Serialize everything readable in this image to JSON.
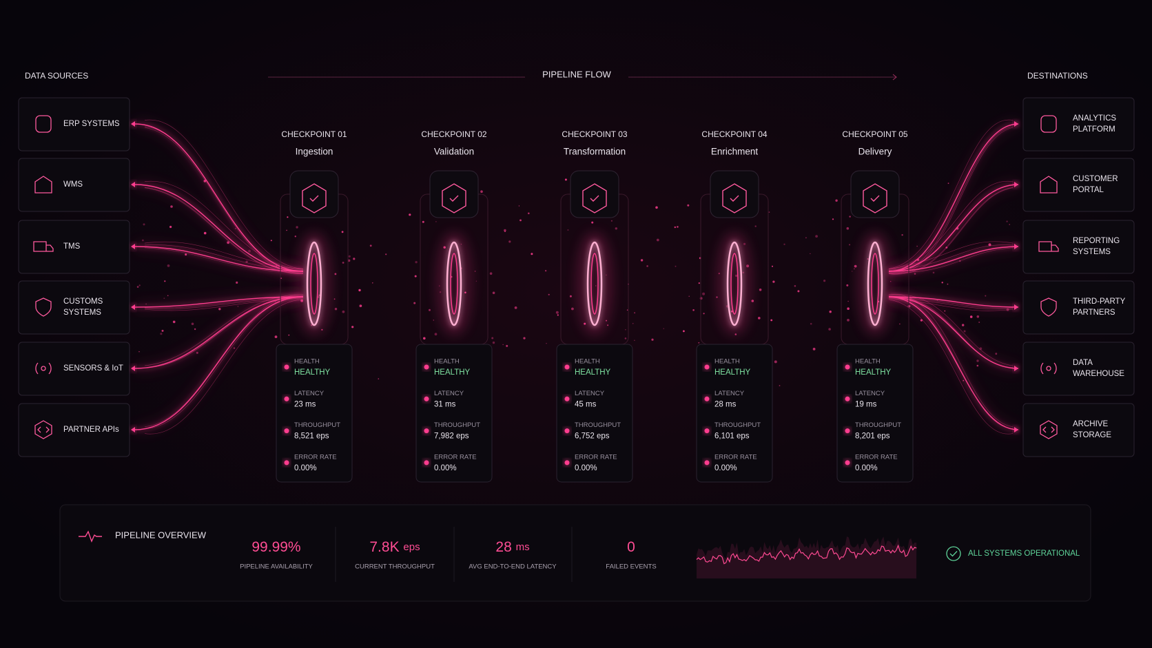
{
  "header": {
    "sources_title": "DATA SOURCES",
    "flow_title": "PIPELINE FLOW",
    "destinations_title": "DESTINATIONS"
  },
  "sources": [
    {
      "label": [
        "ERP SYSTEMS"
      ]
    },
    {
      "label": [
        "WMS"
      ]
    },
    {
      "label": [
        "TMS"
      ]
    },
    {
      "label": [
        "CUSTOMS",
        "SYSTEMS"
      ]
    },
    {
      "label": [
        "SENSORS & IoT"
      ]
    },
    {
      "label": [
        "PARTNER APIs"
      ]
    }
  ],
  "destinations": [
    {
      "label": [
        "ANALYTICS",
        "PLATFORM"
      ]
    },
    {
      "label": [
        "CUSTOMER",
        "PORTAL"
      ]
    },
    {
      "label": [
        "REPORTING",
        "SYSTEMS"
      ]
    },
    {
      "label": [
        "THIRD-PARTY",
        "PARTNERS"
      ]
    },
    {
      "label": [
        "DATA",
        "WAREHOUSE"
      ]
    },
    {
      "label": [
        "ARCHIVE",
        "STORAGE"
      ]
    }
  ],
  "checkpoints": [
    {
      "label": "CHECKPOINT 01",
      "name": "Ingestion",
      "metrics": [
        {
          "label": "HEALTH",
          "value": "HEALTHY"
        },
        {
          "label": "LATENCY",
          "value": "23 ms"
        },
        {
          "label": "THROUGHPUT",
          "value": "8,521 eps"
        },
        {
          "label": "ERROR RATE",
          "value": "0.00%"
        }
      ]
    },
    {
      "label": "CHECKPOINT 02",
      "name": "Validation",
      "metrics": [
        {
          "label": "HEALTH",
          "value": "HEALTHY"
        },
        {
          "label": "LATENCY",
          "value": "31 ms"
        },
        {
          "label": "THROUGHPUT",
          "value": "7,982 eps"
        },
        {
          "label": "ERROR RATE",
          "value": "0.00%"
        }
      ]
    },
    {
      "label": "CHECKPOINT 03",
      "name": "Transformation",
      "metrics": [
        {
          "label": "HEALTH",
          "value": "HEALTHY"
        },
        {
          "label": "LATENCY",
          "value": "45 ms"
        },
        {
          "label": "THROUGHPUT",
          "value": "6,752 eps"
        },
        {
          "label": "ERROR RATE",
          "value": "0.00%"
        }
      ]
    },
    {
      "label": "CHECKPOINT 04",
      "name": "Enrichment",
      "metrics": [
        {
          "label": "HEALTH",
          "value": "HEALTHY"
        },
        {
          "label": "LATENCY",
          "value": "28 ms"
        },
        {
          "label": "THROUGHPUT",
          "value": "6,101 eps"
        },
        {
          "label": "ERROR RATE",
          "value": "0.00%"
        }
      ]
    },
    {
      "label": "CHECKPOINT 05",
      "name": "Delivery",
      "metrics": [
        {
          "label": "HEALTH",
          "value": "HEALTHY"
        },
        {
          "label": "LATENCY",
          "value": "19 ms"
        },
        {
          "label": "THROUGHPUT",
          "value": "8,201 eps"
        },
        {
          "label": "ERROR RATE",
          "value": "0.00%"
        }
      ]
    }
  ],
  "overview": {
    "title": "PIPELINE OVERVIEW",
    "stats": [
      {
        "value": "99.99%",
        "label": "PIPELINE AVAILABILITY"
      },
      {
        "value": "7.8K",
        "unit": "eps",
        "label": "CURRENT THROUGHPUT"
      },
      {
        "value": "28",
        "unit": "ms",
        "label": "AVG END-TO-END LATENCY"
      },
      {
        "value": "0",
        "label": "FAILED EVENTS"
      }
    ],
    "status": "ALL SYSTEMS OPERATIONAL"
  }
}
